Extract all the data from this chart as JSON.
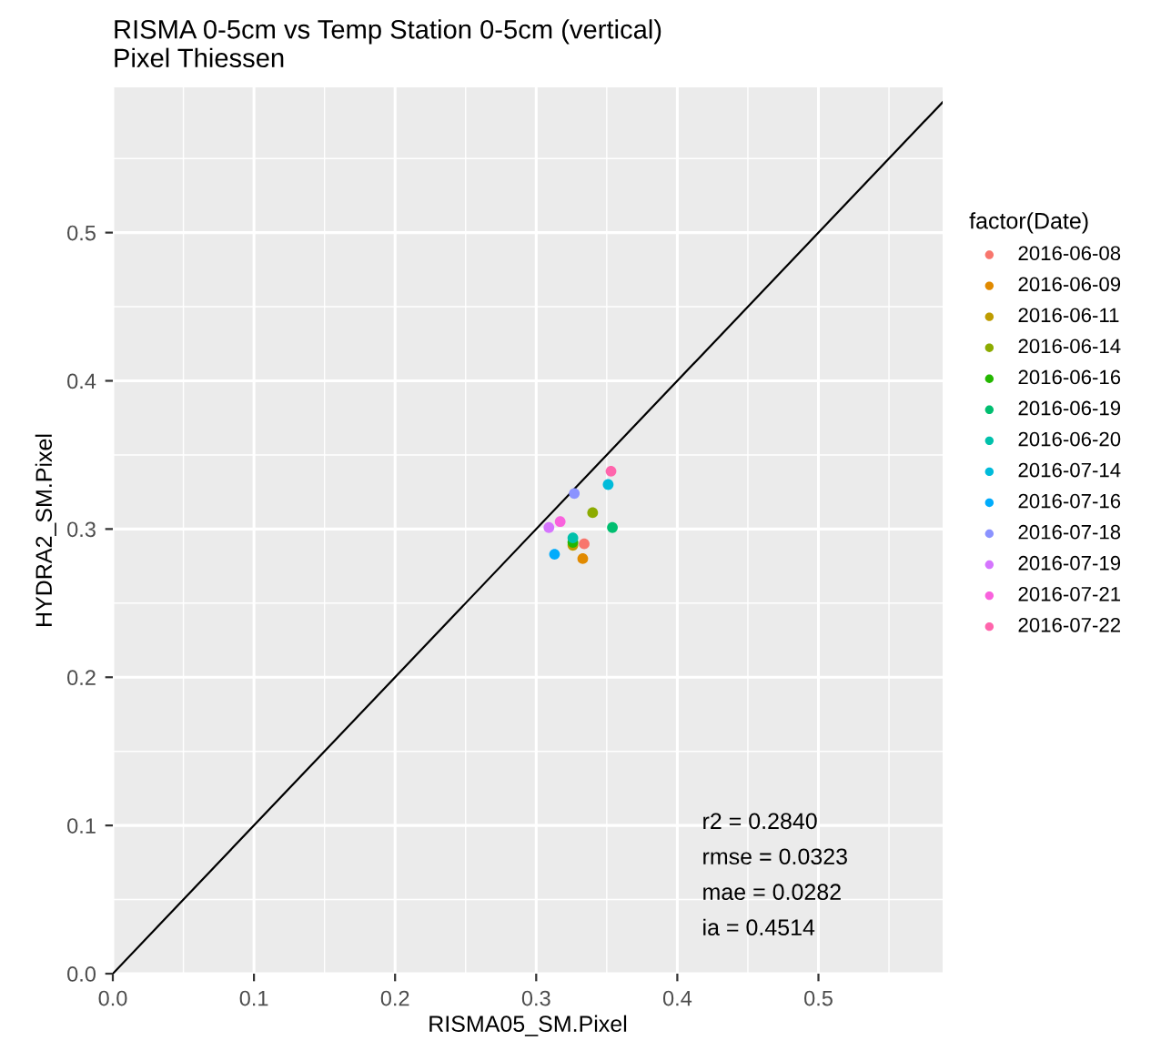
{
  "chart_data": {
    "type": "scatter",
    "title": "RISMA 0-5cm vs Temp Station 0-5cm (vertical)\nPixel Thiessen",
    "xlabel": "RISMA05_SM.Pixel",
    "ylabel": "HYDRA2_SM.Pixel",
    "legend_title": "factor(Date)",
    "xlim": [
      0,
      0.588
    ],
    "ylim": [
      0,
      0.598
    ],
    "xticks": [
      {
        "value": 0,
        "label": "0.0"
      },
      0.1,
      0.2,
      0.3,
      0.4,
      0.5
    ],
    "yticks": [
      {
        "value": 0,
        "label": "0.0"
      },
      0.1,
      0.2,
      0.3,
      0.4,
      0.5
    ],
    "grid": true,
    "legend": "right",
    "marker": "circle",
    "series": [
      {
        "name": "2016-06-08",
        "color": "#f8766d",
        "x": [
          0.334
        ],
        "values": [
          0.29
        ]
      },
      {
        "name": "2016-06-09",
        "color": "#e18a00",
        "x": [
          0.333
        ],
        "values": [
          0.28
        ]
      },
      {
        "name": "2016-06-11",
        "color": "#be9c00",
        "x": [
          0.326
        ],
        "values": [
          0.289
        ]
      },
      {
        "name": "2016-06-14",
        "color": "#8cab00",
        "x": [
          0.34
        ],
        "values": [
          0.311
        ]
      },
      {
        "name": "2016-06-16",
        "color": "#24b700",
        "x": [
          0.326
        ],
        "values": [
          0.291
        ]
      },
      {
        "name": "2016-06-19",
        "color": "#00be70",
        "x": [
          0.354
        ],
        "values": [
          0.301
        ]
      },
      {
        "name": "2016-06-20",
        "color": "#00c1ab",
        "x": [
          0.326
        ],
        "values": [
          0.294
        ]
      },
      {
        "name": "2016-07-14",
        "color": "#00bbda",
        "x": [
          0.351
        ],
        "values": [
          0.33
        ]
      },
      {
        "name": "2016-07-16",
        "color": "#00acfc",
        "x": [
          0.313
        ],
        "values": [
          0.283
        ]
      },
      {
        "name": "2016-07-18",
        "color": "#8b93ff",
        "x": [
          0.327
        ],
        "values": [
          0.324
        ]
      },
      {
        "name": "2016-07-19",
        "color": "#d575fe",
        "x": [
          0.309
        ],
        "values": [
          0.301
        ]
      },
      {
        "name": "2016-07-21",
        "color": "#f962dd",
        "x": [
          0.317
        ],
        "values": [
          0.305
        ]
      },
      {
        "name": "2016-07-22",
        "color": "#ff65ac",
        "x": [
          0.353
        ],
        "values": [
          0.339
        ]
      },
      {
        "type": "line",
        "marker": "none",
        "color": "#000000",
        "x": [
          0,
          0.588
        ],
        "values": [
          0,
          0.588
        ]
      }
    ],
    "annotations": [
      "r2 = 0.2840",
      "rmse = 0.0323",
      "mae = 0.0282",
      "ia = 0.4514"
    ]
  }
}
